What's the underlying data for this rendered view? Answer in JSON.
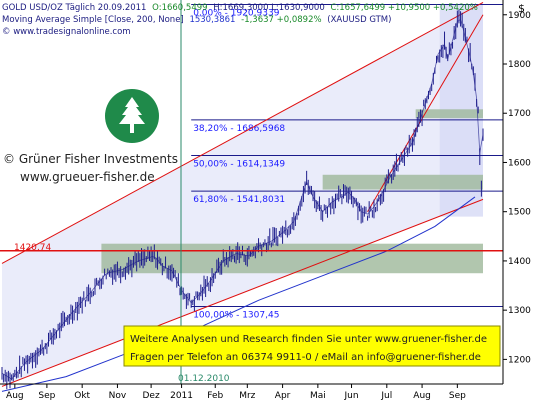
{
  "header": {
    "line1_name": "GOLD USD/OZ Täglich 20.09.2011",
    "line1_open": "O:1660,5499",
    "line1_hl": "H:1669,3000 L:1630,9000",
    "line1_close": "C:1657,6499 +10,9500 +0,5420%",
    "line2_label": "Moving Average Simple [Close, 200, None]",
    "line2_value": "1530,3861",
    "line2_change": "-1,3637 +0,0892%",
    "line2_sym": "(XAUUSD GTM)",
    "line3_url": "© www.tradesignalonline.com",
    "corner_sym": "$"
  },
  "brand": {
    "name": "© Grüner Fisher Investments",
    "url": "www.grueuer-fisher.de"
  },
  "footer_box": {
    "line1": "Weitere Analysen und Research finden Sie unter www.gruener-fisher.de",
    "line2": "Fragen per Telefon an 06374 9911-0 / eMail an info@gruener-fisher.de"
  },
  "date_marker": "01.12.2010",
  "hline_label": "1420,74",
  "colors": {
    "price": "#1e1e8c",
    "ma": "#2233cc",
    "channel": "#e01010",
    "fib_line": "#1a1a8a",
    "zone_fill": "#9db89a",
    "shade_fill": "#d8dcf6",
    "hline": "#e01010",
    "vline": "#2a8a6a",
    "footer_bg": "#ffff00",
    "footer_border": "#8a8a00"
  },
  "chart_data": {
    "type": "line",
    "ylim": [
      1150,
      1930
    ],
    "ytick_labels": [
      "1200",
      "1300",
      "1400",
      "1500",
      "1600",
      "1700",
      "1800",
      "1900"
    ],
    "yticks": [
      1200,
      1300,
      1400,
      1500,
      1600,
      1700,
      1800,
      1900
    ],
    "xtick_labels": [
      "Aug",
      "Sep",
      "Okt",
      "Nov",
      "Dez",
      "2011",
      "Feb",
      "Mrz",
      "Apr",
      "Mai",
      "Jun",
      "Jul",
      "Aug",
      "Sep"
    ],
    "xtick_index": [
      8,
      28,
      50,
      72,
      93,
      112,
      133,
      153,
      175,
      197,
      218,
      240,
      262,
      284
    ],
    "n_days": 300,
    "series": [
      {
        "name": "Moving Average Simple [Close, 200, None]",
        "values": [
          [
            0,
            1135
          ],
          [
            40,
            1165
          ],
          [
            80,
            1215
          ],
          [
            120,
            1260
          ],
          [
            160,
            1320
          ],
          [
            200,
            1370
          ],
          [
            240,
            1420
          ],
          [
            270,
            1470
          ],
          [
            295,
            1530
          ]
        ]
      }
    ],
    "price_anchors": [
      [
        0,
        1172
      ],
      [
        6,
        1160
      ],
      [
        15,
        1195
      ],
      [
        25,
        1220
      ],
      [
        35,
        1260
      ],
      [
        45,
        1300
      ],
      [
        55,
        1335
      ],
      [
        65,
        1375
      ],
      [
        75,
        1382
      ],
      [
        85,
        1400
      ],
      [
        95,
        1410
      ],
      [
        100,
        1390
      ],
      [
        106,
        1380
      ],
      [
        112,
        1340
      ],
      [
        118,
        1315
      ],
      [
        124,
        1335
      ],
      [
        130,
        1360
      ],
      [
        138,
        1400
      ],
      [
        146,
        1415
      ],
      [
        154,
        1410
      ],
      [
        160,
        1430
      ],
      [
        168,
        1440
      ],
      [
        176,
        1460
      ],
      [
        182,
        1480
      ],
      [
        186,
        1520
      ],
      [
        190,
        1560
      ],
      [
        194,
        1530
      ],
      [
        200,
        1500
      ],
      [
        206,
        1520
      ],
      [
        212,
        1530
      ],
      [
        216,
        1540
      ],
      [
        220,
        1525
      ],
      [
        224,
        1500
      ],
      [
        228,
        1495
      ],
      [
        232,
        1510
      ],
      [
        236,
        1530
      ],
      [
        242,
        1570
      ],
      [
        248,
        1600
      ],
      [
        252,
        1620
      ],
      [
        256,
        1640
      ],
      [
        260,
        1680
      ],
      [
        264,
        1720
      ],
      [
        268,
        1760
      ],
      [
        272,
        1820
      ],
      [
        276,
        1840
      ],
      [
        278,
        1810
      ],
      [
        282,
        1860
      ],
      [
        285,
        1900
      ],
      [
        287,
        1880
      ],
      [
        290,
        1840
      ],
      [
        293,
        1800
      ],
      [
        295,
        1760
      ],
      [
        297,
        1700
      ],
      [
        298,
        1620
      ],
      [
        299,
        1540
      ],
      [
        300,
        1657
      ]
    ],
    "channel_lines": [
      {
        "name": "upper",
        "values": [
          [
            0,
            1395
          ],
          [
            300,
            1925
          ]
        ]
      },
      {
        "name": "lower",
        "values": [
          [
            0,
            1145
          ],
          [
            300,
            1525
          ]
        ]
      }
    ],
    "fibonacci": [
      {
        "label": "0,00% - 1920,9339",
        "value": 1920.9339
      },
      {
        "label": "38,20% - 1686,5968",
        "value": 1686.5968
      },
      {
        "label": "50,00% - 1614,1349",
        "value": 1614.1349
      },
      {
        "label": "61,80% - 1541,8031",
        "value": 1541.8031
      },
      {
        "label": "100,00% - 1307,45",
        "value": 1307.45
      }
    ],
    "support_zones": [
      {
        "from": 1375,
        "to": 1435
      },
      {
        "from": 1545,
        "to": 1575
      },
      {
        "from": 1690,
        "to": 1708
      }
    ],
    "hline": 1420.74
  }
}
